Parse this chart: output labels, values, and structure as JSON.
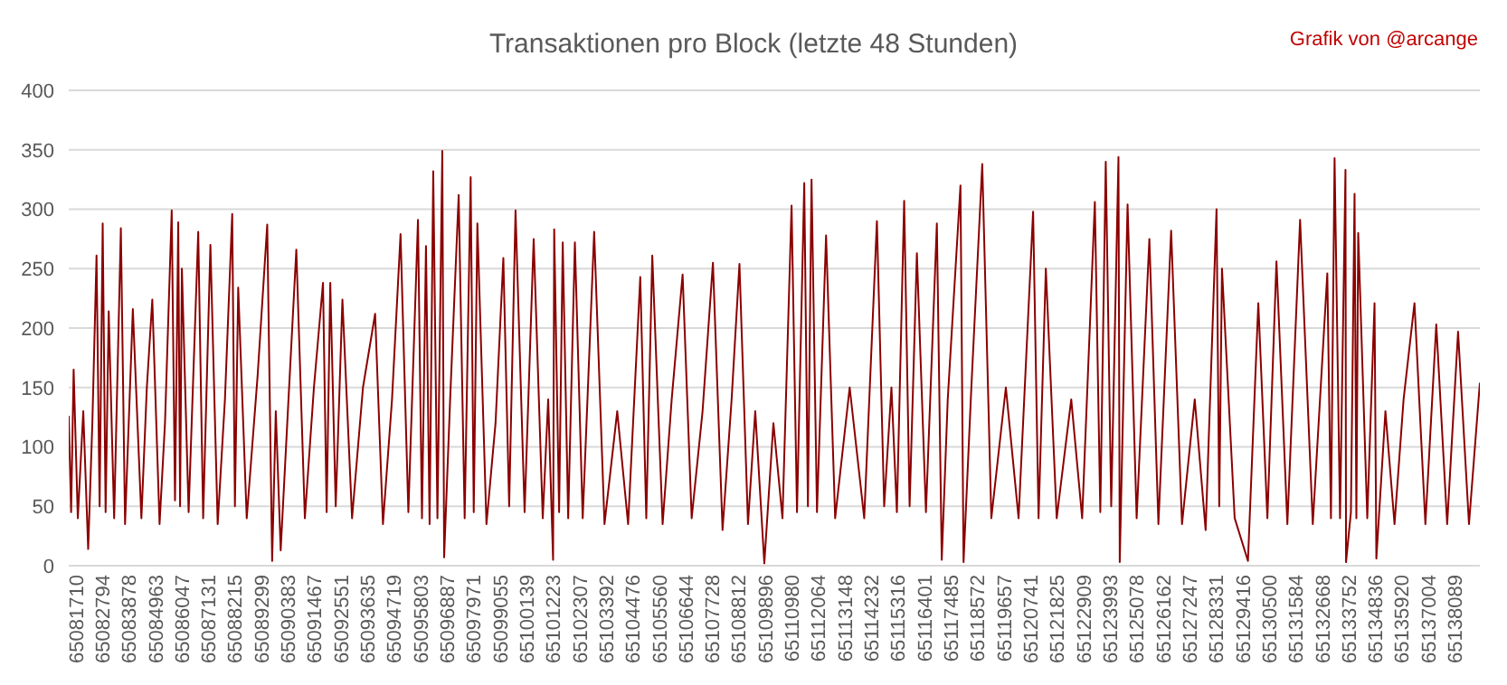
{
  "chart_data": {
    "type": "line",
    "title": "Transaktionen pro Block (letzte 48 Stunden)",
    "annotations": [
      "Grafik von @arcange"
    ],
    "x": [
      65081710,
      65081807,
      65081910,
      65082081,
      65082304,
      65082504,
      65082675,
      65082846,
      65082972,
      65083098,
      65083217,
      65083344,
      65083566,
      65083841,
      65084012,
      65084331,
      65084680,
      65084903,
      65085126,
      65085423,
      65085645,
      65085920,
      65086054,
      65086187,
      65086262,
      65086336,
      65086611,
      65087004,
      65087205,
      65087502,
      65087799,
      65088096,
      65088393,
      65088504,
      65088638,
      65088987,
      65089432,
      65089825,
      65090026,
      65090175,
      65090375,
      65090694,
      65091014,
      65091363,
      65091734,
      65092105,
      65092254,
      65092402,
      65092625,
      65092899,
      65093293,
      65093739,
      65094236,
      65094556,
      65094927,
      65095275,
      65095595,
      65095988,
      65096151,
      65096315,
      65096463,
      65096612,
      65096783,
      65096983,
      65097057,
      65097303,
      65097652,
      65097897,
      65098142,
      65098268,
      65098416,
      65098788,
      65099159,
      65099478,
      65099716,
      65099976,
      65100347,
      65100718,
      65101089,
      65101312,
      65101512,
      65101557,
      65101758,
      65101906,
      65102129,
      65102403,
      65102723,
      65103191,
      65103614,
      65104134,
      65104579,
      65105076,
      65105322,
      65105567,
      65105990,
      65106361,
      65106807,
      65107178,
      65107623,
      65108047,
      65108440,
      65108811,
      65109131,
      65109480,
      65109777,
      65110148,
      65110519,
      65110890,
      65111262,
      65111484,
      65111781,
      65111930,
      65112078,
      65112301,
      65112672,
      65113044,
      65113638,
      65114232,
      65114751,
      65115048,
      65115345,
      65115568,
      65115865,
      65116088,
      65116385,
      65116756,
      65117202,
      65117402,
      65117647,
      65118167,
      65118293,
      65118612,
      65119058,
      65119429,
      65120023,
      65120543,
      65121137,
      65121360,
      65121657,
      65122102,
      65122696,
      65123142,
      65123661,
      65123884,
      65124107,
      65124330,
      65124627,
      65124679,
      65124999,
      65125370,
      65125890,
      65126260,
      65126780,
      65127225,
      65127745,
      65128191,
      65128636,
      65128747,
      65128859,
      65129378,
      65129921,
      65130344,
      65130715,
      65131086,
      65131532,
      65132052,
      65132571,
      65133165,
      65133314,
      65133462,
      65133685,
      65133908,
      65133930,
      65134130,
      65134279,
      65134353,
      65134428,
      65134799,
      65135096,
      65135170,
      65135541,
      65135913,
      65136284,
      65136729,
      65137175,
      65137620,
      65138066,
      65138511,
      65138957,
      65139402
    ],
    "series": [
      {
        "color": "#8b0000",
        "values": [
          126,
          45,
          165,
          40,
          130,
          14,
          120,
          261,
          50,
          288,
          45,
          214,
          40,
          284,
          35,
          216,
          40,
          150,
          224,
          35,
          120,
          299,
          55,
          289,
          50,
          250,
          45,
          281,
          40,
          270,
          35,
          140,
          296,
          50,
          234,
          40,
          160,
          287,
          4,
          130,
          13,
          140,
          266,
          40,
          150,
          238,
          45,
          238,
          50,
          224,
          40,
          150,
          212,
          35,
          140,
          279,
          45,
          291,
          40,
          269,
          35,
          332,
          40,
          349,
          7,
          140,
          312,
          40,
          327,
          45,
          288,
          35,
          120,
          259,
          50,
          299,
          45,
          275,
          40,
          140,
          5,
          283,
          45,
          272,
          40,
          272,
          40,
          281,
          35,
          130,
          35,
          243,
          40,
          261,
          35,
          140,
          245,
          40,
          130,
          255,
          30,
          140,
          254,
          35,
          130,
          2,
          120,
          40,
          303,
          45,
          322,
          50,
          325,
          45,
          278,
          40,
          150,
          40,
          290,
          50,
          150,
          45,
          307,
          50,
          263,
          45,
          288,
          5,
          140,
          320,
          3,
          150,
          338,
          40,
          150,
          40,
          298,
          40,
          250,
          40,
          140,
          40,
          306,
          45,
          340,
          50,
          344,
          3,
          304,
          40,
          275,
          35,
          282,
          35,
          140,
          30,
          300,
          50,
          250,
          40,
          4,
          221,
          40,
          256,
          35,
          291,
          35,
          246,
          40,
          343,
          40,
          333,
          3,
          45,
          313,
          40,
          280,
          40,
          221,
          6,
          130,
          35,
          140,
          221,
          35,
          203,
          35,
          197,
          35,
          154
        ]
      }
    ],
    "xlim": [
      65081710,
      65139402
    ],
    "xticks": [
      65081710,
      65082794,
      65083878,
      65084963,
      65086047,
      65087131,
      65088215,
      65089299,
      65090383,
      65091467,
      65092551,
      65093635,
      65094719,
      65095803,
      65096887,
      65097971,
      65099055,
      65100139,
      65101223,
      65102307,
      65103392,
      65104476,
      65105560,
      65106644,
      65107728,
      65108812,
      65109896,
      65110980,
      65112064,
      65113148,
      65114232,
      65115316,
      65116401,
      65117485,
      65118572,
      65119657,
      65120741,
      65121825,
      65122909,
      65123993,
      65125078,
      65126162,
      65127247,
      65128331,
      65129416,
      65130500,
      65131584,
      65132668,
      65133752,
      65134836,
      65135920,
      65137004,
      65138089
    ],
    "ylim": [
      0,
      400
    ],
    "yticks": [
      0,
      50,
      100,
      150,
      200,
      250,
      300,
      350,
      400
    ],
    "grid": "y",
    "legend": false,
    "marker": "none",
    "line_style": "solid"
  }
}
